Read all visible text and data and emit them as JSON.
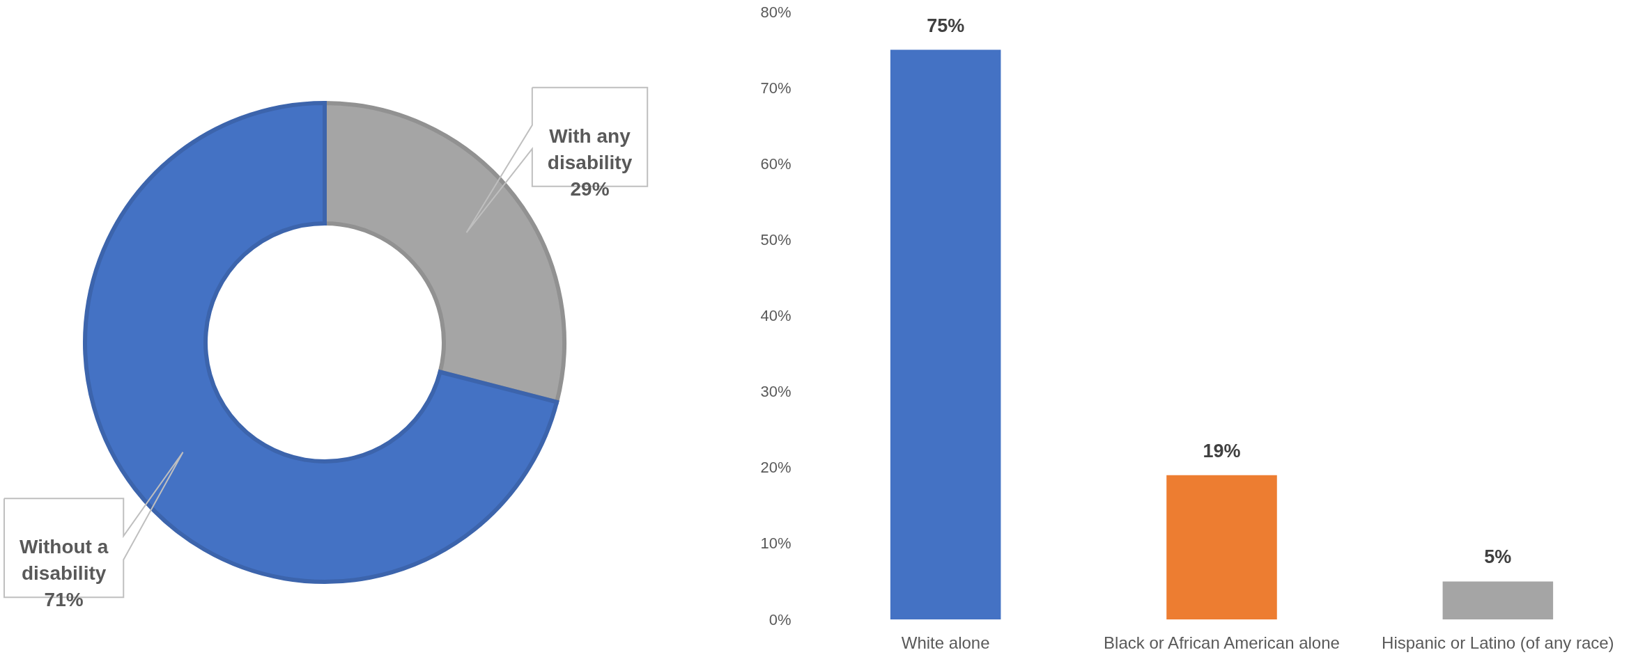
{
  "chart_data": [
    {
      "type": "donut",
      "categories": [
        "With any disability",
        "Without a disability"
      ],
      "values": [
        29,
        71
      ],
      "colors": [
        "#a5a5a5",
        "#4472c4"
      ],
      "value_labels": [
        "29%",
        "71%"
      ]
    },
    {
      "type": "bar",
      "categories": [
        "White alone",
        "Black or African American alone",
        "Hispanic or Latino (of any race)"
      ],
      "values": [
        75,
        19,
        5
      ],
      "colors": [
        "#4472c4",
        "#ed7d31",
        "#a5a5a5"
      ],
      "value_labels": [
        "75%",
        "19%",
        "5%"
      ],
      "ylim": [
        0,
        80
      ],
      "yticks": [
        {
          "value": 0,
          "label": "0%"
        },
        {
          "value": 10,
          "label": "10%"
        },
        {
          "value": 20,
          "label": "20%"
        },
        {
          "value": 30,
          "label": "30%"
        },
        {
          "value": 40,
          "label": "40%"
        },
        {
          "value": 50,
          "label": "50%"
        },
        {
          "value": 60,
          "label": "60%"
        },
        {
          "value": 70,
          "label": "70%"
        },
        {
          "value": 80,
          "label": "80%"
        }
      ]
    }
  ]
}
